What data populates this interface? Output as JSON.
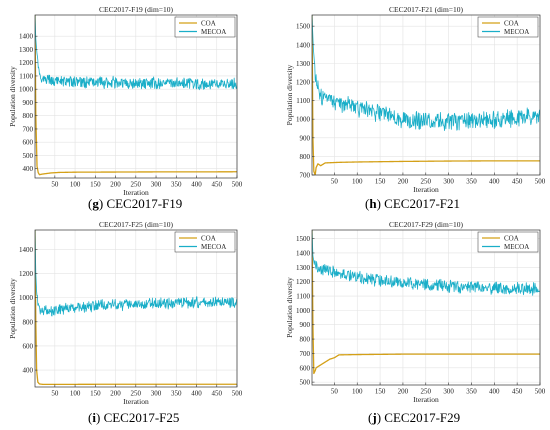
{
  "chart_data": [
    {
      "type": "line",
      "panel_label": "g",
      "caption": "CEC2017-F19",
      "title": "CEC2017-F19 (dim=10)",
      "xlabel": "Iteration",
      "ylabel": "Population diversity",
      "xlim": [
        1,
        500
      ],
      "ylim": [
        330,
        1560
      ],
      "xticks": [
        50,
        100,
        150,
        200,
        250,
        300,
        350,
        400,
        450,
        500
      ],
      "yticks": [
        400,
        500,
        600,
        700,
        800,
        900,
        1000,
        1100,
        1200,
        1300,
        1400
      ],
      "grid": true,
      "legend_position": "top-right",
      "series": [
        {
          "name": "COA",
          "color": "#d4a017",
          "x": [
            1,
            3,
            6,
            9,
            12,
            20,
            40,
            60,
            100,
            200,
            300,
            400,
            500
          ],
          "values": [
            1560,
            800,
            420,
            370,
            355,
            360,
            368,
            372,
            374,
            375,
            376,
            376,
            377
          ]
        },
        {
          "name": "MECOA",
          "color": "#1aaec8",
          "x": [
            1,
            3,
            5,
            8,
            12,
            16,
            20,
            25,
            35,
            60,
            100,
            200,
            300,
            400,
            500
          ],
          "values": [
            1560,
            1380,
            1300,
            1200,
            1100,
            1060,
            1100,
            1080,
            1070,
            1060,
            1055,
            1050,
            1045,
            1040,
            1040
          ],
          "noise": 38
        }
      ]
    },
    {
      "type": "line",
      "panel_label": "h",
      "caption": "CEC2017-F21",
      "title": "CEC2017-F21 (dim=10)",
      "xlabel": "Iteration",
      "ylabel": "Population diversity",
      "xlim": [
        1,
        500
      ],
      "ylim": [
        700,
        1560
      ],
      "xticks": [
        50,
        100,
        150,
        200,
        250,
        300,
        350,
        400,
        450,
        500
      ],
      "yticks": [
        700,
        800,
        900,
        1000,
        1100,
        1200,
        1300,
        1400,
        1500
      ],
      "grid": true,
      "legend_position": "top-right",
      "series": [
        {
          "name": "COA",
          "color": "#d4a017",
          "x": [
            1,
            3,
            5,
            8,
            10,
            14,
            20,
            30,
            60,
            100,
            200,
            300,
            400,
            500
          ],
          "values": [
            1560,
            900,
            720,
            700,
            740,
            760,
            750,
            765,
            768,
            770,
            773,
            775,
            776,
            776
          ]
        },
        {
          "name": "MECOA",
          "color": "#1aaec8",
          "x": [
            1,
            4,
            8,
            12,
            18,
            25,
            40,
            60,
            100,
            150,
            200,
            250,
            300,
            350,
            400,
            450,
            500
          ],
          "values": [
            1560,
            1380,
            1250,
            1180,
            1130,
            1110,
            1100,
            1080,
            1060,
            1030,
            1000,
            990,
            985,
            990,
            1000,
            1005,
            1010
          ],
          "noise": 42
        }
      ]
    },
    {
      "type": "line",
      "panel_label": "i",
      "caption": "CEC2017-F25",
      "title": "CEC2017-F25 (dim=10)",
      "xlabel": "Iteration",
      "ylabel": "Population diversity",
      "xlim": [
        1,
        500
      ],
      "ylim": [
        260,
        1560
      ],
      "xticks": [
        50,
        100,
        150,
        200,
        250,
        300,
        350,
        400,
        450,
        500
      ],
      "yticks": [
        400,
        600,
        800,
        1000,
        1200,
        1400
      ],
      "grid": true,
      "legend_position": "top-right",
      "series": [
        {
          "name": "COA",
          "color": "#d4a017",
          "x": [
            1,
            3,
            5,
            8,
            12,
            20,
            40,
            100,
            200,
            300,
            400,
            500
          ],
          "values": [
            1560,
            800,
            400,
            300,
            285,
            282,
            282,
            282,
            283,
            283,
            283,
            283
          ]
        },
        {
          "name": "MECOA",
          "color": "#1aaec8",
          "x": [
            1,
            3,
            5,
            8,
            12,
            16,
            22,
            30,
            50,
            80,
            100,
            150,
            200,
            300,
            400,
            500
          ],
          "values": [
            1560,
            1200,
            1050,
            950,
            920,
            900,
            890,
            890,
            900,
            910,
            920,
            930,
            940,
            950,
            960,
            960
          ],
          "noise": 40
        }
      ]
    },
    {
      "type": "line",
      "panel_label": "j",
      "caption": "CEC2017-F29",
      "title": "CEC2017-F29 (dim=10)",
      "xlabel": "Iteration",
      "ylabel": "Population diversity",
      "xlim": [
        1,
        500
      ],
      "ylim": [
        480,
        1560
      ],
      "xticks": [
        50,
        100,
        150,
        200,
        250,
        300,
        350,
        400,
        450,
        500
      ],
      "yticks": [
        500,
        600,
        700,
        800,
        900,
        1000,
        1100,
        1200,
        1300,
        1400,
        1500
      ],
      "grid": true,
      "legend_position": "top-right",
      "series": [
        {
          "name": "COA",
          "color": "#d4a017",
          "x": [
            1,
            3,
            5,
            8,
            10,
            15,
            20,
            30,
            40,
            50,
            60,
            100,
            200,
            300,
            400,
            500
          ],
          "values": [
            1560,
            900,
            560,
            580,
            600,
            610,
            620,
            640,
            660,
            670,
            690,
            692,
            695,
            695,
            695,
            695
          ]
        },
        {
          "name": "MECOA",
          "color": "#1aaec8",
          "x": [
            1,
            3,
            6,
            10,
            20,
            40,
            60,
            100,
            150,
            200,
            250,
            300,
            350,
            400,
            450,
            500
          ],
          "values": [
            1560,
            1380,
            1320,
            1300,
            1290,
            1270,
            1250,
            1230,
            1210,
            1190,
            1180,
            1170,
            1160,
            1150,
            1150,
            1150
          ],
          "noise": 38
        }
      ]
    }
  ]
}
